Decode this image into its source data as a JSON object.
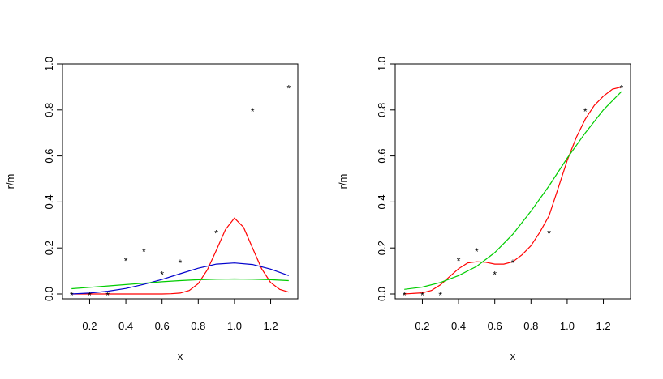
{
  "chart_data": [
    {
      "type": "scatter",
      "title": "",
      "xlabel": "x",
      "ylabel": "r/m",
      "xlim": [
        0.05,
        1.35
      ],
      "ylim": [
        0.0,
        1.0
      ],
      "x_ticks": [
        0.2,
        0.4,
        0.6,
        0.8,
        1.0,
        1.2
      ],
      "y_ticks": [
        0.0,
        0.2,
        0.4,
        0.6,
        0.8,
        1.0
      ],
      "x_tick_labels": [
        "0.2",
        "0.4",
        "0.6",
        "0.8",
        "1.0",
        "1.2"
      ],
      "y_tick_labels": [
        "0.0",
        "0.2",
        "0.4",
        "0.6",
        "0.8",
        "1.0"
      ],
      "grid": false,
      "points": {
        "marker": "*",
        "x": [
          0.1,
          0.2,
          0.3,
          0.4,
          0.5,
          0.6,
          0.7,
          0.9,
          1.1,
          1.3
        ],
        "y": [
          0.0,
          0.0,
          0.0,
          0.15,
          0.19,
          0.09,
          0.14,
          0.27,
          0.8,
          0.9
        ]
      },
      "series": [
        {
          "color": "#ff0000",
          "x": [
            0.1,
            0.2,
            0.3,
            0.4,
            0.5,
            0.6,
            0.65,
            0.7,
            0.75,
            0.8,
            0.85,
            0.9,
            0.95,
            1.0,
            1.05,
            1.1,
            1.15,
            1.2,
            1.25,
            1.3
          ],
          "y": [
            0.0,
            0.0,
            0.0,
            0.0,
            0.0,
            0.0,
            0.001,
            0.004,
            0.015,
            0.045,
            0.105,
            0.19,
            0.28,
            0.33,
            0.29,
            0.2,
            0.11,
            0.05,
            0.02,
            0.008
          ]
        },
        {
          "color": "#0000cc",
          "x": [
            0.1,
            0.2,
            0.3,
            0.4,
            0.5,
            0.6,
            0.7,
            0.8,
            0.9,
            1.0,
            1.1,
            1.2,
            1.3
          ],
          "y": [
            0.0,
            0.004,
            0.012,
            0.024,
            0.042,
            0.063,
            0.088,
            0.112,
            0.13,
            0.135,
            0.128,
            0.108,
            0.08
          ]
        },
        {
          "color": "#00cc00",
          "x": [
            0.1,
            0.2,
            0.3,
            0.4,
            0.5,
            0.6,
            0.7,
            0.8,
            0.9,
            1.0,
            1.1,
            1.2,
            1.3
          ],
          "y": [
            0.023,
            0.029,
            0.035,
            0.041,
            0.047,
            0.053,
            0.058,
            0.062,
            0.064,
            0.065,
            0.064,
            0.062,
            0.058
          ]
        }
      ]
    },
    {
      "type": "scatter",
      "title": "",
      "xlabel": "x",
      "ylabel": "r/m",
      "xlim": [
        0.05,
        1.35
      ],
      "ylim": [
        0.0,
        1.0
      ],
      "x_ticks": [
        0.2,
        0.4,
        0.6,
        0.8,
        1.0,
        1.2
      ],
      "y_ticks": [
        0.0,
        0.2,
        0.4,
        0.6,
        0.8,
        1.0
      ],
      "x_tick_labels": [
        "0.2",
        "0.4",
        "0.6",
        "0.8",
        "1.0",
        "1.2"
      ],
      "y_tick_labels": [
        "0.0",
        "0.2",
        "0.4",
        "0.6",
        "0.8",
        "1.0"
      ],
      "grid": false,
      "points": {
        "marker": "*",
        "x": [
          0.1,
          0.2,
          0.3,
          0.4,
          0.5,
          0.6,
          0.7,
          0.9,
          1.1,
          1.3
        ],
        "y": [
          0.0,
          0.0,
          0.0,
          0.15,
          0.19,
          0.09,
          0.14,
          0.27,
          0.8,
          0.9
        ]
      },
      "series": [
        {
          "color": "#ff0000",
          "x": [
            0.1,
            0.2,
            0.25,
            0.3,
            0.35,
            0.4,
            0.45,
            0.5,
            0.55,
            0.6,
            0.65,
            0.7,
            0.75,
            0.8,
            0.85,
            0.9,
            0.95,
            1.0,
            1.05,
            1.1,
            1.15,
            1.2,
            1.25,
            1.3
          ],
          "y": [
            0.0,
            0.005,
            0.015,
            0.04,
            0.075,
            0.11,
            0.135,
            0.14,
            0.138,
            0.13,
            0.13,
            0.14,
            0.17,
            0.21,
            0.27,
            0.34,
            0.46,
            0.58,
            0.68,
            0.76,
            0.82,
            0.86,
            0.89,
            0.9
          ]
        },
        {
          "color": "#00cc00",
          "x": [
            0.1,
            0.2,
            0.3,
            0.4,
            0.5,
            0.6,
            0.7,
            0.8,
            0.9,
            1.0,
            1.1,
            1.2,
            1.3
          ],
          "y": [
            0.02,
            0.03,
            0.05,
            0.08,
            0.12,
            0.18,
            0.26,
            0.36,
            0.47,
            0.59,
            0.7,
            0.8,
            0.88
          ]
        }
      ]
    }
  ]
}
